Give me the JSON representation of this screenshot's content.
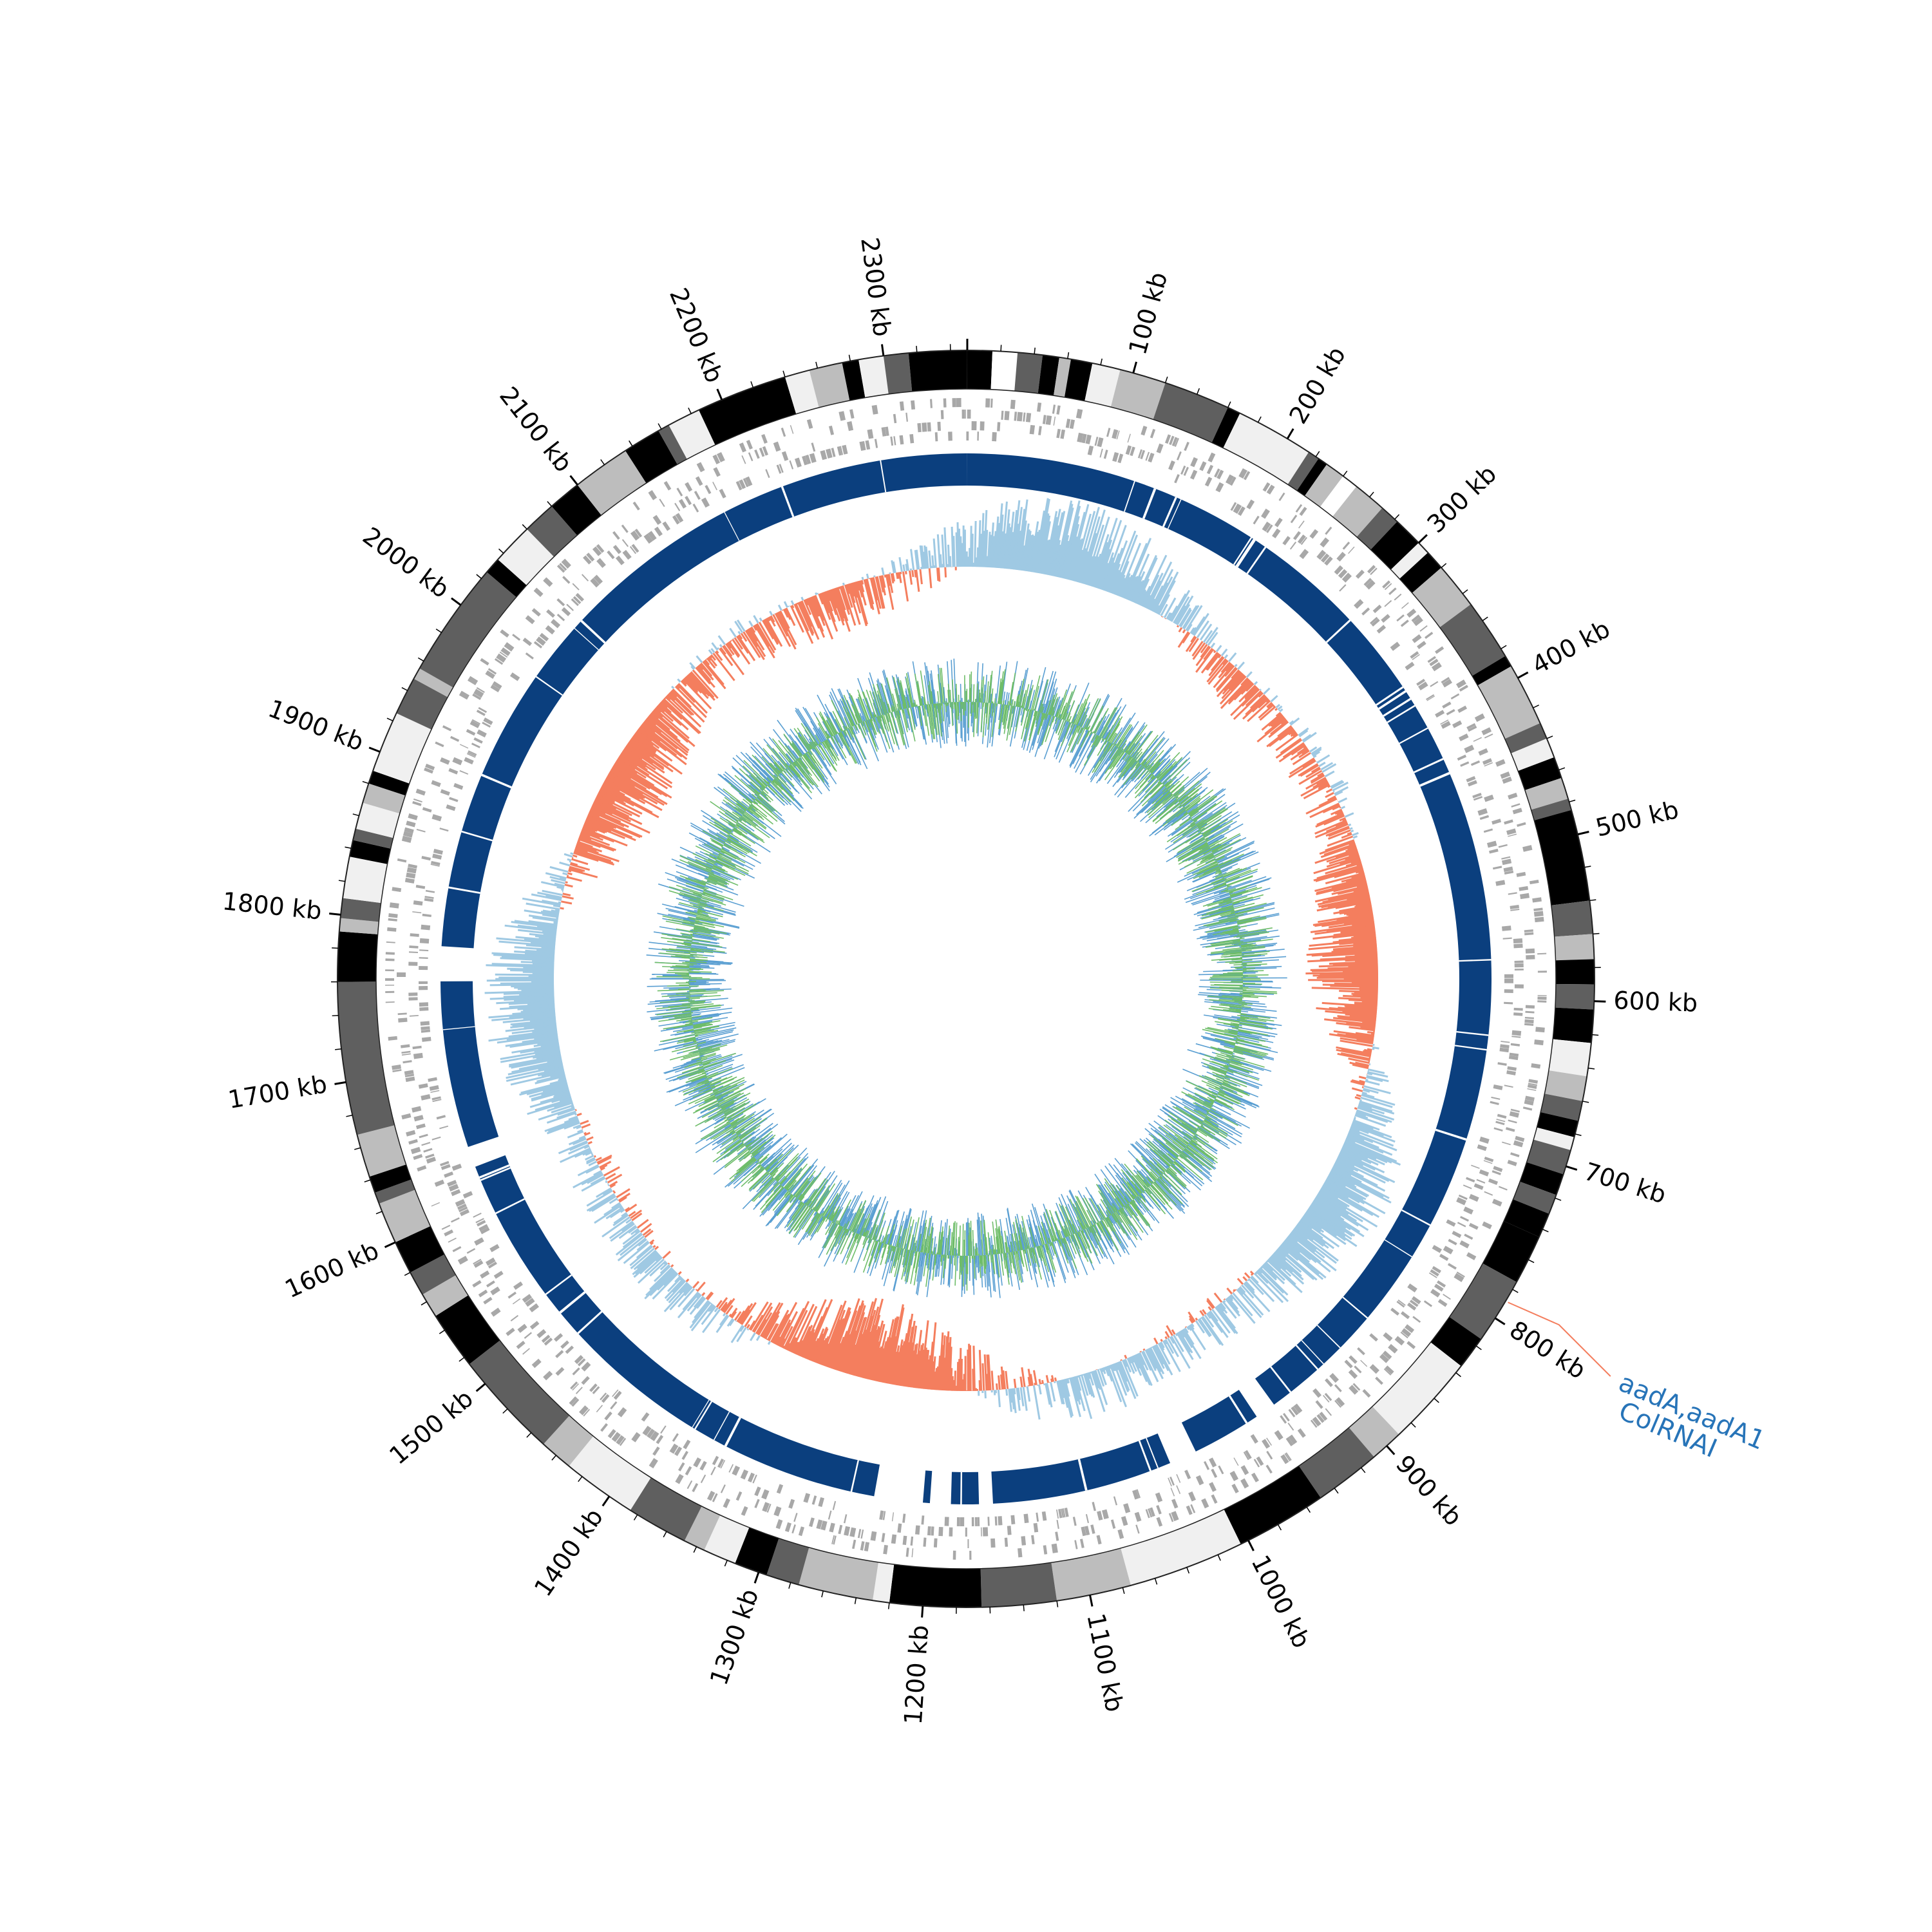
{
  "chart_data": {
    "type": "circular-genome-map",
    "genome_length_kb": 2350,
    "tick_labels": [
      "100 kb",
      "200 kb",
      "300 kb",
      "400 kb",
      "500 kb",
      "600 kb",
      "700 kb",
      "800 kb",
      "900 kb",
      "1000 kb",
      "1100 kb",
      "1200 kb",
      "1300 kb",
      "1400 kb",
      "1500 kb",
      "1600 kb",
      "1700 kb",
      "1800 kb",
      "1900 kb",
      "2000 kb",
      "2100 kb",
      "2200 kb",
      "2300 kb"
    ],
    "tick_positions_kb": [
      100,
      200,
      300,
      400,
      500,
      600,
      700,
      800,
      900,
      1000,
      1100,
      1200,
      1300,
      1400,
      1500,
      1600,
      1700,
      1800,
      1900,
      2000,
      2100,
      2200,
      2300
    ],
    "contigs": [
      {
        "start": 0,
        "end": 15,
        "shade": "#000000"
      },
      {
        "start": 15,
        "end": 30,
        "shade": "#ffffff"
      },
      {
        "start": 30,
        "end": 45,
        "shade": "#5f5f5f"
      },
      {
        "start": 45,
        "end": 55,
        "shade": "#000000"
      },
      {
        "start": 55,
        "end": 62,
        "shade": "#bdbdbd"
      },
      {
        "start": 62,
        "end": 75,
        "shade": "#000000"
      },
      {
        "start": 75,
        "end": 92,
        "shade": "#f0f0f0"
      },
      {
        "start": 92,
        "end": 120,
        "shade": "#bdbdbd"
      },
      {
        "start": 120,
        "end": 160,
        "shade": "#5f5f5f"
      },
      {
        "start": 160,
        "end": 168,
        "shade": "#000000"
      },
      {
        "start": 168,
        "end": 215,
        "shade": "#f0f0f0"
      },
      {
        "start": 215,
        "end": 222,
        "shade": "#5f5f5f"
      },
      {
        "start": 222,
        "end": 228,
        "shade": "#000000"
      },
      {
        "start": 228,
        "end": 240,
        "shade": "#bdbdbd"
      },
      {
        "start": 240,
        "end": 250,
        "shade": "#ffffff"
      },
      {
        "start": 250,
        "end": 270,
        "shade": "#bdbdbd"
      },
      {
        "start": 270,
        "end": 282,
        "shade": "#5f5f5f"
      },
      {
        "start": 282,
        "end": 300,
        "shade": "#000000"
      },
      {
        "start": 300,
        "end": 308,
        "shade": "#f0f0f0"
      },
      {
        "start": 308,
        "end": 320,
        "shade": "#000000"
      },
      {
        "start": 320,
        "end": 348,
        "shade": "#bdbdbd"
      },
      {
        "start": 348,
        "end": 385,
        "shade": "#5f5f5f"
      },
      {
        "start": 385,
        "end": 392,
        "shade": "#000000"
      },
      {
        "start": 392,
        "end": 430,
        "shade": "#bdbdbd"
      },
      {
        "start": 430,
        "end": 440,
        "shade": "#5f5f5f"
      },
      {
        "start": 440,
        "end": 452,
        "shade": "#f0f0f0"
      },
      {
        "start": 452,
        "end": 465,
        "shade": "#000000"
      },
      {
        "start": 465,
        "end": 478,
        "shade": "#bdbdbd"
      },
      {
        "start": 478,
        "end": 485,
        "shade": "#5f5f5f"
      },
      {
        "start": 485,
        "end": 540,
        "shade": "#000000"
      },
      {
        "start": 540,
        "end": 560,
        "shade": "#5f5f5f"
      },
      {
        "start": 560,
        "end": 575,
        "shade": "#bdbdbd"
      },
      {
        "start": 575,
        "end": 590,
        "shade": "#000000"
      },
      {
        "start": 590,
        "end": 605,
        "shade": "#5f5f5f"
      },
      {
        "start": 605,
        "end": 625,
        "shade": "#000000"
      },
      {
        "start": 625,
        "end": 645,
        "shade": "#f0f0f0"
      },
      {
        "start": 645,
        "end": 660,
        "shade": "#bdbdbd"
      },
      {
        "start": 660,
        "end": 672,
        "shade": "#5f5f5f"
      },
      {
        "start": 672,
        "end": 682,
        "shade": "#000000"
      },
      {
        "start": 682,
        "end": 690,
        "shade": "#f0f0f0"
      },
      {
        "start": 690,
        "end": 705,
        "shade": "#5f5f5f"
      },
      {
        "start": 705,
        "end": 718,
        "shade": "#000000"
      },
      {
        "start": 718,
        "end": 730,
        "shade": "#5f5f5f"
      },
      {
        "start": 730,
        "end": 745,
        "shade": "#000000"
      },
      {
        "start": 745,
        "end": 775,
        "shade": "#000000"
      },
      {
        "start": 775,
        "end": 815,
        "shade": "#5f5f5f"
      },
      {
        "start": 815,
        "end": 835,
        "shade": "#000000"
      },
      {
        "start": 835,
        "end": 890,
        "shade": "#f0f0f0"
      },
      {
        "start": 890,
        "end": 910,
        "shade": "#bdbdbd"
      },
      {
        "start": 910,
        "end": 950,
        "shade": "#5f5f5f"
      },
      {
        "start": 950,
        "end": 1005,
        "shade": "#000000"
      },
      {
        "start": 1005,
        "end": 1075,
        "shade": "#f0f0f0"
      },
      {
        "start": 1075,
        "end": 1120,
        "shade": "#bdbdbd"
      },
      {
        "start": 1120,
        "end": 1165,
        "shade": "#5f5f5f"
      },
      {
        "start": 1165,
        "end": 1220,
        "shade": "#000000"
      },
      {
        "start": 1220,
        "end": 1230,
        "shade": "#f0f0f0"
      },
      {
        "start": 1230,
        "end": 1275,
        "shade": "#bdbdbd"
      },
      {
        "start": 1275,
        "end": 1295,
        "shade": "#5f5f5f"
      },
      {
        "start": 1295,
        "end": 1315,
        "shade": "#000000"
      },
      {
        "start": 1315,
        "end": 1335,
        "shade": "#f0f0f0"
      },
      {
        "start": 1335,
        "end": 1348,
        "shade": "#bdbdbd"
      },
      {
        "start": 1348,
        "end": 1385,
        "shade": "#5f5f5f"
      },
      {
        "start": 1385,
        "end": 1430,
        "shade": "#f0f0f0"
      },
      {
        "start": 1430,
        "end": 1450,
        "shade": "#bdbdbd"
      },
      {
        "start": 1450,
        "end": 1515,
        "shade": "#5f5f5f"
      },
      {
        "start": 1515,
        "end": 1550,
        "shade": "#000000"
      },
      {
        "start": 1550,
        "end": 1565,
        "shade": "#bdbdbd"
      },
      {
        "start": 1565,
        "end": 1580,
        "shade": "#5f5f5f"
      },
      {
        "start": 1580,
        "end": 1600,
        "shade": "#000000"
      },
      {
        "start": 1600,
        "end": 1625,
        "shade": "#bdbdbd"
      },
      {
        "start": 1625,
        "end": 1632,
        "shade": "#5f5f5f"
      },
      {
        "start": 1632,
        "end": 1642,
        "shade": "#000000"
      },
      {
        "start": 1642,
        "end": 1668,
        "shade": "#bdbdbd"
      },
      {
        "start": 1668,
        "end": 1760,
        "shade": "#5f5f5f"
      },
      {
        "start": 1760,
        "end": 1790,
        "shade": "#000000"
      },
      {
        "start": 1790,
        "end": 1798,
        "shade": "#bdbdbd"
      },
      {
        "start": 1798,
        "end": 1810,
        "shade": "#5f5f5f"
      },
      {
        "start": 1810,
        "end": 1835,
        "shade": "#f0f0f0"
      },
      {
        "start": 1835,
        "end": 1845,
        "shade": "#000000"
      },
      {
        "start": 1845,
        "end": 1852,
        "shade": "#5f5f5f"
      },
      {
        "start": 1852,
        "end": 1868,
        "shade": "#f0f0f0"
      },
      {
        "start": 1868,
        "end": 1880,
        "shade": "#bdbdbd"
      },
      {
        "start": 1880,
        "end": 1888,
        "shade": "#000000"
      },
      {
        "start": 1888,
        "end": 1925,
        "shade": "#f0f0f0"
      },
      {
        "start": 1925,
        "end": 1948,
        "shade": "#5f5f5f"
      },
      {
        "start": 1948,
        "end": 1955,
        "shade": "#bdbdbd"
      },
      {
        "start": 1955,
        "end": 2025,
        "shade": "#5f5f5f"
      },
      {
        "start": 2025,
        "end": 2035,
        "shade": "#000000"
      },
      {
        "start": 2035,
        "end": 2060,
        "shade": "#f0f0f0"
      },
      {
        "start": 2060,
        "end": 2080,
        "shade": "#5f5f5f"
      },
      {
        "start": 2080,
        "end": 2100,
        "shade": "#000000"
      },
      {
        "start": 2100,
        "end": 2135,
        "shade": "#bdbdbd"
      },
      {
        "start": 2135,
        "end": 2158,
        "shade": "#000000"
      },
      {
        "start": 2158,
        "end": 2165,
        "shade": "#5f5f5f"
      },
      {
        "start": 2165,
        "end": 2185,
        "shade": "#f0f0f0"
      },
      {
        "start": 2185,
        "end": 2240,
        "shade": "#000000"
      },
      {
        "start": 2240,
        "end": 2255,
        "shade": "#f0f0f0"
      },
      {
        "start": 2255,
        "end": 2275,
        "shade": "#bdbdbd"
      },
      {
        "start": 2275,
        "end": 2285,
        "shade": "#000000"
      },
      {
        "start": 2285,
        "end": 2300,
        "shade": "#f0f0f0"
      },
      {
        "start": 2300,
        "end": 2315,
        "shade": "#5f5f5f"
      },
      {
        "start": 2315,
        "end": 2350,
        "shade": "#000000"
      }
    ],
    "blast_gaps_kb": [
      [
        1760,
        1785
      ],
      [
        1185,
        1200
      ],
      [
        1205,
        1240
      ],
      [
        940,
        955
      ],
      [
        1625,
        1640
      ],
      [
        1005,
        1025
      ],
      [
        1155,
        1165
      ]
    ],
    "annotations": [
      {
        "position_kb": 788,
        "lines": [
          "aadA,aadA1",
          "ColRNAI"
        ]
      }
    ],
    "series": [
      {
        "role": "gc-skew-positive"
      },
      {
        "role": "gc-skew-negative"
      },
      {
        "role": "gc-content-outer"
      },
      {
        "role": "gc-content-inner"
      }
    ]
  },
  "colors": {
    "gene_track": "#a8a8a8",
    "blast_track": "#0b3f7e",
    "skew_pos": "#9fc9e3",
    "skew_neg": "#f47e5e",
    "gc_blue": "#5a9fd2",
    "gc_green": "#6fbd6a",
    "annotation_line": "#f47e5e",
    "annotation_text": "#2774b8"
  }
}
